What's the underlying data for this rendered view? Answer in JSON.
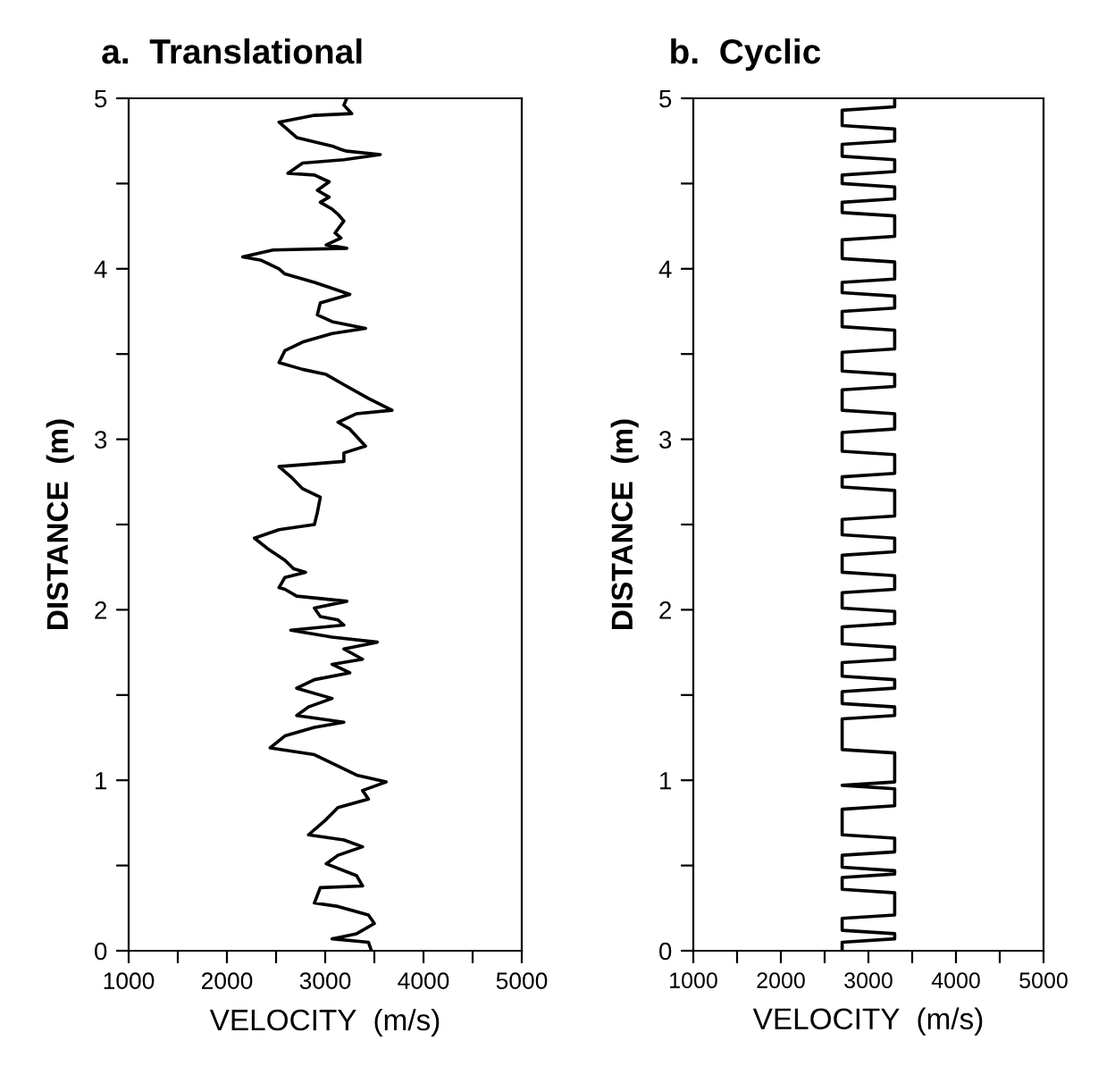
{
  "chart_data": [
    {
      "type": "line",
      "title": "a.  Translational",
      "xlabel": "VELOCITY  (m/s)",
      "ylabel": "DISTANCE  (m)",
      "color": "#000000",
      "marker": "none",
      "line_style": "solid",
      "grid": false,
      "x": [
        3220,
        3190,
        3270,
        2890,
        2530,
        2590,
        2710,
        3070,
        3160,
        3220,
        3560,
        3190,
        2770,
        2620,
        2890,
        3040,
        2920,
        3040,
        2950,
        3070,
        3130,
        3190,
        3100,
        3160,
        3010,
        3220,
        2470,
        2160,
        2350,
        2530,
        2590,
        2890,
        3100,
        3250,
        2950,
        2920,
        3070,
        3410,
        3070,
        2770,
        2590,
        2530,
        2770,
        3010,
        3190,
        3440,
        3680,
        3320,
        3130,
        3250,
        3410,
        3190,
        3190,
        2530,
        2650,
        2770,
        2950,
        2920,
        2890,
        2530,
        2280,
        2410,
        2590,
        2680,
        2800,
        2590,
        2530,
        2590,
        2710,
        3220,
        2890,
        2950,
        3130,
        3190,
        2650,
        3070,
        3530,
        3190,
        3380,
        3070,
        3250,
        2890,
        2710,
        3070,
        2830,
        2710,
        3190,
        2890,
        2590,
        2440,
        2890,
        3070,
        3320,
        3620,
        3380,
        3440,
        3130,
        3010,
        2830,
        3190,
        3380,
        3130,
        3010,
        3320,
        3380,
        2950,
        2890,
        3130,
        3440,
        3500,
        3320,
        3070,
        3440,
        3470
      ],
      "values": [
        5.0,
        4.96,
        4.91,
        4.9,
        4.86,
        4.83,
        4.77,
        4.72,
        4.7,
        4.69,
        4.67,
        4.64,
        4.62,
        4.56,
        4.55,
        4.51,
        4.46,
        4.42,
        4.39,
        4.35,
        4.32,
        4.28,
        4.21,
        4.18,
        4.14,
        4.12,
        4.11,
        4.07,
        4.05,
        4.0,
        3.97,
        3.92,
        3.88,
        3.85,
        3.8,
        3.73,
        3.69,
        3.65,
        3.62,
        3.57,
        3.52,
        3.45,
        3.41,
        3.38,
        3.32,
        3.24,
        3.17,
        3.15,
        3.1,
        3.06,
        2.96,
        2.92,
        2.87,
        2.84,
        2.78,
        2.71,
        2.66,
        2.57,
        2.5,
        2.47,
        2.42,
        2.36,
        2.29,
        2.24,
        2.22,
        2.19,
        2.13,
        2.12,
        2.08,
        2.05,
        2.01,
        1.96,
        1.94,
        1.91,
        1.88,
        1.84,
        1.81,
        1.77,
        1.71,
        1.68,
        1.63,
        1.59,
        1.54,
        1.48,
        1.43,
        1.38,
        1.34,
        1.31,
        1.26,
        1.19,
        1.15,
        1.1,
        1.03,
        0.99,
        0.94,
        0.89,
        0.84,
        0.77,
        0.68,
        0.65,
        0.61,
        0.56,
        0.51,
        0.44,
        0.38,
        0.37,
        0.28,
        0.26,
        0.21,
        0.16,
        0.1,
        0.07,
        0.05,
        0.0
      ],
      "xlim": [
        1000,
        5000
      ],
      "xticks": [
        1000,
        {
          "value": 1500,
          "label": null
        },
        2000,
        {
          "value": 2500,
          "label": null
        },
        3000,
        {
          "value": 3500,
          "label": null
        },
        4000,
        {
          "value": 4500,
          "label": null
        },
        5000
      ],
      "ylim": [
        0,
        5
      ],
      "yticks": [
        0,
        {
          "value": 0.5,
          "label": null
        },
        1,
        {
          "value": 1.5,
          "label": null
        },
        2,
        {
          "value": 2.5,
          "label": null
        },
        3,
        {
          "value": 3.5,
          "label": null
        },
        4,
        {
          "value": 4.5,
          "label": null
        },
        5
      ]
    },
    {
      "type": "line",
      "title": "b.  Cyclic",
      "xlabel": "VELOCITY  (m/s)",
      "ylabel": "DISTANCE  (m)",
      "color": "#000000",
      "marker": "none",
      "line_style": "solid",
      "grid": false,
      "x": [
        3300,
        3300,
        2700,
        2700,
        3300,
        3300,
        2700,
        2700,
        3300,
        3300,
        2700,
        2700,
        3300,
        3300,
        2700,
        2700,
        3300,
        3300,
        2700,
        2700,
        3300,
        3300,
        2700,
        2700,
        3300,
        3300,
        2700,
        2700,
        3300,
        3300,
        2700,
        2700,
        3300,
        3300,
        2700,
        2700,
        3300,
        3300,
        2700,
        2700,
        3300,
        3300,
        2700,
        2700,
        3300,
        3300,
        2700,
        2700,
        3300,
        3300,
        2700,
        2700,
        3300,
        3300,
        2700,
        2700,
        3300,
        3300,
        2700,
        2700,
        3300,
        3300,
        2700,
        2700,
        3300,
        3300,
        2700,
        2700,
        3300,
        3300,
        2700,
        2700,
        3300,
        3300,
        2700,
        2700,
        3300,
        3300,
        2700,
        2700,
        3300,
        3300,
        2700,
        2700,
        3300,
        3300,
        2700,
        2700,
        3300,
        3300,
        2700,
        2700,
        3300,
        3300,
        2700,
        2700
      ],
      "values": [
        5.0,
        4.95,
        4.93,
        4.84,
        4.82,
        4.75,
        4.73,
        4.66,
        4.64,
        4.57,
        4.55,
        4.5,
        4.48,
        4.41,
        4.39,
        4.33,
        4.31,
        4.19,
        4.17,
        4.06,
        4.04,
        3.94,
        3.92,
        3.86,
        3.84,
        3.77,
        3.75,
        3.66,
        3.64,
        3.53,
        3.51,
        3.4,
        3.38,
        3.31,
        3.29,
        3.17,
        3.15,
        3.06,
        3.04,
        2.93,
        2.91,
        2.8,
        2.78,
        2.72,
        2.7,
        2.55,
        2.53,
        2.44,
        2.42,
        2.34,
        2.32,
        2.22,
        2.2,
        2.12,
        2.1,
        2.01,
        1.99,
        1.92,
        1.9,
        1.8,
        1.78,
        1.71,
        1.69,
        1.61,
        1.59,
        1.54,
        1.52,
        1.45,
        1.43,
        1.38,
        1.36,
        1.18,
        1.16,
        0.99,
        0.97,
        0.97,
        0.95,
        0.85,
        0.83,
        0.68,
        0.66,
        0.58,
        0.56,
        0.49,
        0.47,
        0.45,
        0.43,
        0.36,
        0.34,
        0.21,
        0.19,
        0.12,
        0.1,
        0.07,
        0.05,
        0.0
      ],
      "xlim": [
        1000,
        5000
      ],
      "xticks": [
        1000,
        {
          "value": 1500,
          "label": null
        },
        2000,
        {
          "value": 2500,
          "label": null
        },
        3000,
        {
          "value": 3500,
          "label": null
        },
        4000,
        {
          "value": 4500,
          "label": null
        },
        5000
      ],
      "ylim": [
        0,
        5
      ],
      "yticks": [
        0,
        {
          "value": 0.5,
          "label": null
        },
        1,
        {
          "value": 1.5,
          "label": null
        },
        2,
        {
          "value": 2.5,
          "label": null
        },
        3,
        {
          "value": 3.5,
          "label": null
        },
        4,
        {
          "value": 4.5,
          "label": null
        },
        5
      ]
    }
  ]
}
